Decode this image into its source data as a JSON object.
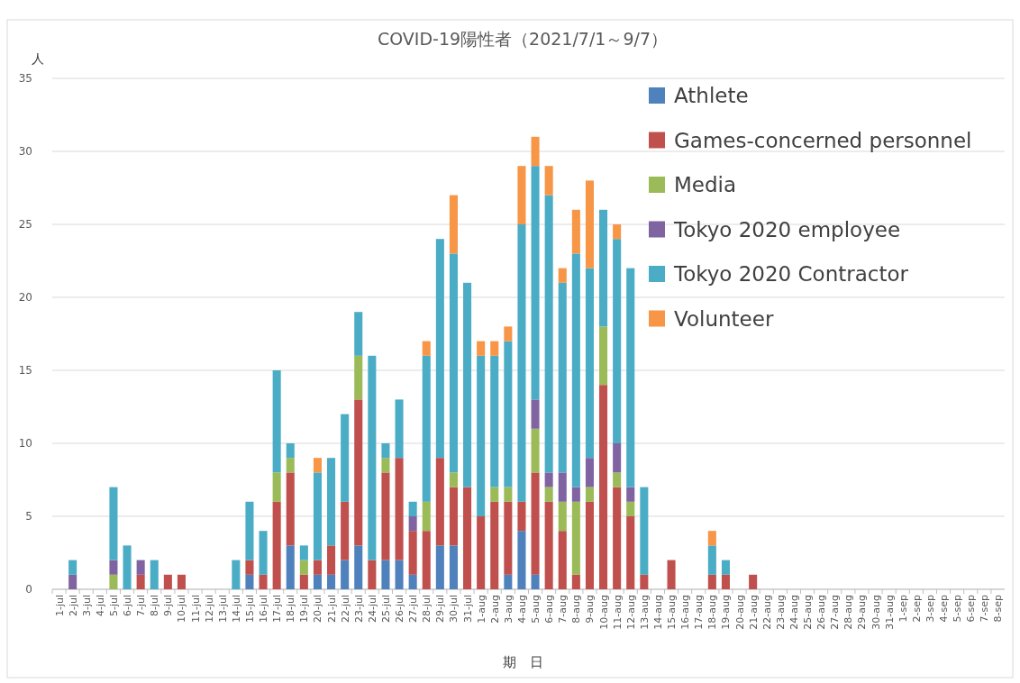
{
  "chart_data": {
    "type": "bar",
    "stacked": true,
    "title": "COVID-19陽性者（2021/7/1～9/7）",
    "ylabel": "人",
    "xlabel": "期　日",
    "categories": [
      "1-jul",
      "2-jul",
      "3-jul",
      "4-jul",
      "5-jul",
      "6-jul",
      "7-jul",
      "8-jul",
      "9-jul",
      "10-jul",
      "11-jul",
      "12-jul",
      "13-jul",
      "14-jul",
      "15-jul",
      "16-jul",
      "17-jul",
      "18-jul",
      "19-jul",
      "20-jul",
      "21-jul",
      "22-jul",
      "23-jul",
      "24-jul",
      "25-jul",
      "26-jul",
      "27-jul",
      "28-jul",
      "29-jul",
      "30-jul",
      "31-jul",
      "1-aug",
      "2-aug",
      "3-aug",
      "4-aug",
      "5-aug",
      "6-aug",
      "7-aug",
      "8-aug",
      "9-aug",
      "10-aug",
      "11-aug",
      "12-aug",
      "13-aug",
      "14-aug",
      "15-aug",
      "16-aug",
      "17-aug",
      "18-aug",
      "19-aug",
      "20-aug",
      "21-aug",
      "22-aug",
      "23-aug",
      "24-aug",
      "25-aug",
      "26-aug",
      "27-aug",
      "28-aug",
      "29-aug",
      "30-aug",
      "31-aug",
      "1-sep",
      "2-sep",
      "3-sep",
      "4-sep",
      "5-sep",
      "6-sep",
      "7-sep",
      "8-sep"
    ],
    "series": [
      {
        "name": "Athlete",
        "color": "#4f81bd",
        "values": [
          0,
          0,
          0,
          0,
          0,
          0,
          0,
          0,
          0,
          0,
          0,
          0,
          0,
          0,
          1,
          0,
          0,
          3,
          0,
          1,
          1,
          2,
          3,
          0,
          2,
          2,
          1,
          0,
          3,
          3,
          0,
          0,
          0,
          1,
          4,
          1,
          0,
          0,
          0,
          0,
          0,
          0,
          0,
          0,
          0,
          0,
          0,
          0,
          0,
          0,
          0,
          0,
          0,
          0,
          0,
          0,
          0,
          0,
          0,
          0,
          0,
          0,
          0,
          0,
          0,
          0,
          0,
          0,
          0,
          0
        ]
      },
      {
        "name": "Games-concerned personnel",
        "color": "#c0504d",
        "values": [
          0,
          0,
          0,
          0,
          0,
          0,
          1,
          0,
          1,
          1,
          0,
          0,
          0,
          0,
          1,
          1,
          6,
          5,
          1,
          1,
          2,
          4,
          10,
          2,
          6,
          7,
          3,
          4,
          6,
          4,
          7,
          5,
          6,
          5,
          2,
          7,
          6,
          4,
          1,
          6,
          14,
          7,
          5,
          1,
          0,
          2,
          0,
          0,
          1,
          1,
          0,
          1,
          0,
          0,
          0,
          0,
          0,
          0,
          0,
          0,
          0,
          0,
          0,
          0,
          0,
          0,
          0,
          0,
          0,
          0
        ]
      },
      {
        "name": "Media",
        "color": "#9bbb59",
        "values": [
          0,
          0,
          0,
          0,
          1,
          0,
          0,
          0,
          0,
          0,
          0,
          0,
          0,
          0,
          0,
          0,
          2,
          1,
          1,
          0,
          0,
          0,
          3,
          0,
          1,
          0,
          0,
          2,
          0,
          1,
          0,
          0,
          1,
          1,
          0,
          3,
          1,
          2,
          5,
          1,
          4,
          1,
          1,
          0,
          0,
          0,
          0,
          0,
          0,
          0,
          0,
          0,
          0,
          0,
          0,
          0,
          0,
          0,
          0,
          0,
          0,
          0,
          0,
          0,
          0,
          0,
          0,
          0,
          0,
          0
        ]
      },
      {
        "name": "Tokyo 2020 employee",
        "color": "#8064a2",
        "values": [
          0,
          1,
          0,
          0,
          1,
          0,
          1,
          0,
          0,
          0,
          0,
          0,
          0,
          0,
          0,
          0,
          0,
          0,
          0,
          0,
          0,
          0,
          0,
          0,
          0,
          0,
          1,
          0,
          0,
          0,
          0,
          0,
          0,
          0,
          0,
          2,
          1,
          2,
          1,
          2,
          0,
          2,
          1,
          0,
          0,
          0,
          0,
          0,
          0,
          0,
          0,
          0,
          0,
          0,
          0,
          0,
          0,
          0,
          0,
          0,
          0,
          0,
          0,
          0,
          0,
          0,
          0,
          0,
          0,
          0
        ]
      },
      {
        "name": "Tokyo 2020 Contractor",
        "color": "#4bacc6",
        "values": [
          0,
          1,
          0,
          0,
          5,
          3,
          0,
          2,
          0,
          0,
          0,
          0,
          0,
          2,
          4,
          3,
          7,
          1,
          1,
          6,
          6,
          6,
          3,
          14,
          1,
          4,
          1,
          10,
          15,
          15,
          14,
          11,
          9,
          10,
          19,
          16,
          19,
          13,
          16,
          13,
          8,
          14,
          15,
          6,
          0,
          0,
          0,
          0,
          2,
          1,
          0,
          0,
          0,
          0,
          0,
          0,
          0,
          0,
          0,
          0,
          0,
          0,
          0,
          0,
          0,
          0,
          0,
          0,
          0,
          0
        ]
      },
      {
        "name": "Volunteer",
        "color": "#f79646",
        "values": [
          0,
          0,
          0,
          0,
          0,
          0,
          0,
          0,
          0,
          0,
          0,
          0,
          0,
          0,
          0,
          0,
          0,
          0,
          0,
          1,
          0,
          0,
          0,
          0,
          0,
          0,
          0,
          1,
          0,
          4,
          0,
          1,
          1,
          1,
          4,
          2,
          2,
          1,
          3,
          6,
          0,
          1,
          0,
          0,
          0,
          0,
          0,
          0,
          1,
          0,
          0,
          0,
          0,
          0,
          0,
          0,
          0,
          0,
          0,
          0,
          0,
          0,
          0,
          0,
          0,
          0,
          0,
          0,
          0,
          0
        ]
      }
    ],
    "ylim": [
      0,
      35
    ],
    "yticks": [
      0,
      5,
      10,
      15,
      20,
      25,
      30,
      35
    ],
    "grid": "y",
    "legend": "top right"
  }
}
